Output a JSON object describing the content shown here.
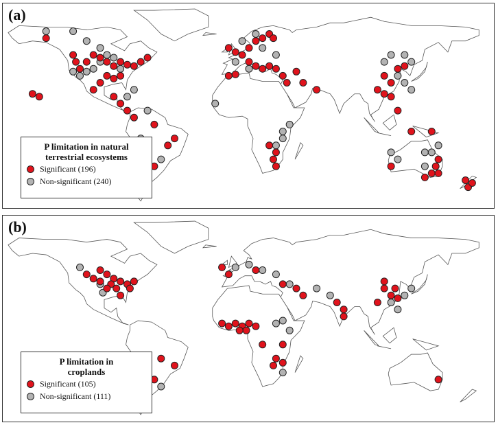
{
  "colors": {
    "significant": "#e0131c",
    "non_significant": "#b3b3b3",
    "outline": "#222222",
    "land_stroke": "#555555"
  },
  "panels": [
    {
      "id": "a",
      "label": "(a)",
      "legend": {
        "title_lines": [
          "P limitation in natural",
          "terrestrial ecosystems"
        ],
        "significant": "Significant (196)",
        "non_significant": "Non-significant (240)"
      },
      "sites": {
        "significant": [
          [
            -140,
            62
          ],
          [
            -150,
            22
          ],
          [
            -145,
            20
          ],
          [
            -120,
            50
          ],
          [
            -118,
            45
          ],
          [
            -115,
            40
          ],
          [
            -110,
            45
          ],
          [
            -105,
            50
          ],
          [
            -100,
            48
          ],
          [
            -95,
            45
          ],
          [
            -90,
            42
          ],
          [
            -85,
            45
          ],
          [
            -80,
            43
          ],
          [
            -75,
            42
          ],
          [
            -70,
            45
          ],
          [
            -65,
            48
          ],
          [
            -95,
            35
          ],
          [
            -90,
            33
          ],
          [
            -85,
            35
          ],
          [
            -100,
            30
          ],
          [
            -105,
            25
          ],
          [
            -90,
            20
          ],
          [
            -85,
            15
          ],
          [
            -80,
            10
          ],
          [
            -75,
            5
          ],
          [
            -60,
            0
          ],
          [
            -45,
            -10
          ],
          [
            -50,
            -15
          ],
          [
            -60,
            -30
          ],
          [
            -65,
            -40
          ],
          [
            -70,
            -50
          ],
          [
            -5,
            55
          ],
          [
            0,
            52
          ],
          [
            5,
            50
          ],
          [
            10,
            55
          ],
          [
            15,
            60
          ],
          [
            20,
            62
          ],
          [
            25,
            65
          ],
          [
            28,
            62
          ],
          [
            10,
            45
          ],
          [
            15,
            42
          ],
          [
            20,
            40
          ],
          [
            25,
            42
          ],
          [
            30,
            40
          ],
          [
            35,
            35
          ],
          [
            38,
            30
          ],
          [
            -5,
            35
          ],
          [
            0,
            36
          ],
          [
            45,
            38
          ],
          [
            50,
            30
          ],
          [
            60,
            25
          ],
          [
            25,
            -15
          ],
          [
            30,
            -20
          ],
          [
            28,
            -25
          ],
          [
            30,
            -30
          ],
          [
            110,
            35
          ],
          [
            115,
            30
          ],
          [
            120,
            40
          ],
          [
            125,
            42
          ],
          [
            105,
            25
          ],
          [
            110,
            22
          ],
          [
            115,
            20
          ],
          [
            120,
            10
          ],
          [
            130,
            -5
          ],
          [
            145,
            -5
          ],
          [
            150,
            -25
          ],
          [
            148,
            -30
          ],
          [
            145,
            -35
          ],
          [
            150,
            -35
          ],
          [
            140,
            -38
          ],
          [
            115,
            -30
          ],
          [
            170,
            -40
          ],
          [
            172,
            -45
          ],
          [
            175,
            -42
          ]
        ],
        "non_significant": [
          [
            -140,
            67
          ],
          [
            -120,
            67
          ],
          [
            -110,
            60
          ],
          [
            -100,
            55
          ],
          [
            -95,
            50
          ],
          [
            -90,
            48
          ],
          [
            -100,
            45
          ],
          [
            -105,
            40
          ],
          [
            -110,
            38
          ],
          [
            -115,
            35
          ],
          [
            -120,
            38
          ],
          [
            -85,
            40
          ],
          [
            -75,
            25
          ],
          [
            -80,
            20
          ],
          [
            -65,
            10
          ],
          [
            -70,
            -10
          ],
          [
            -65,
            -20
          ],
          [
            -55,
            -25
          ],
          [
            -15,
            15
          ],
          [
            5,
            60
          ],
          [
            15,
            65
          ],
          [
            20,
            55
          ],
          [
            0,
            45
          ],
          [
            10,
            40
          ],
          [
            30,
            50
          ],
          [
            35,
            -5
          ],
          [
            40,
            0
          ],
          [
            35,
            -10
          ],
          [
            30,
            -15
          ],
          [
            110,
            45
          ],
          [
            115,
            50
          ],
          [
            125,
            50
          ],
          [
            130,
            45
          ],
          [
            120,
            35
          ],
          [
            125,
            30
          ],
          [
            130,
            25
          ],
          [
            115,
            -20
          ],
          [
            120,
            -25
          ],
          [
            140,
            -20
          ],
          [
            150,
            -15
          ],
          [
            145,
            -20
          ],
          [
            140,
            -30
          ]
        ]
      }
    },
    {
      "id": "b",
      "label": "(b)",
      "legend": {
        "title_lines": [
          "P limitation in",
          "croplands"
        ],
        "significant": "Significant (105)",
        "non_significant": "Non-significant (111)"
      },
      "sites": {
        "significant": [
          [
            -100,
            48
          ],
          [
            -95,
            45
          ],
          [
            -90,
            42
          ],
          [
            -85,
            40
          ],
          [
            -92,
            38
          ],
          [
            -88,
            35
          ],
          [
            -95,
            35
          ],
          [
            -100,
            40
          ],
          [
            -105,
            42
          ],
          [
            -110,
            45
          ],
          [
            -80,
            38
          ],
          [
            -78,
            35
          ],
          [
            -85,
            30
          ],
          [
            -75,
            40
          ],
          [
            -10,
            50
          ],
          [
            -5,
            45
          ],
          [
            15,
            48
          ],
          [
            35,
            38
          ],
          [
            45,
            35
          ],
          [
            50,
            30
          ],
          [
            75,
            25
          ],
          [
            80,
            20
          ],
          [
            80,
            15
          ],
          [
            -10,
            10
          ],
          [
            -5,
            8
          ],
          [
            0,
            10
          ],
          [
            5,
            8
          ],
          [
            10,
            10
          ],
          [
            15,
            8
          ],
          [
            8,
            5
          ],
          [
            3,
            5
          ],
          [
            20,
            -5
          ],
          [
            35,
            -5
          ],
          [
            30,
            -15
          ],
          [
            35,
            -18
          ],
          [
            28,
            -20
          ],
          [
            110,
            35
          ],
          [
            115,
            30
          ],
          [
            120,
            28
          ],
          [
            105,
            25
          ],
          [
            110,
            40
          ],
          [
            118,
            35
          ],
          [
            150,
            -30
          ],
          [
            -55,
            -15
          ],
          [
            -45,
            -20
          ],
          [
            -60,
            -30
          ],
          [
            -65,
            -28
          ]
        ],
        "non_significant": [
          [
            -115,
            50
          ],
          [
            -100,
            38
          ],
          [
            -98,
            32
          ],
          [
            0,
            50
          ],
          [
            10,
            52
          ],
          [
            20,
            48
          ],
          [
            30,
            45
          ],
          [
            40,
            38
          ],
          [
            60,
            35
          ],
          [
            70,
            30
          ],
          [
            30,
            10
          ],
          [
            35,
            12
          ],
          [
            40,
            5
          ],
          [
            35,
            -25
          ],
          [
            120,
            20
          ],
          [
            115,
            25
          ],
          [
            125,
            30
          ],
          [
            130,
            35
          ],
          [
            -70,
            -35
          ],
          [
            -55,
            -35
          ]
        ]
      }
    }
  ]
}
